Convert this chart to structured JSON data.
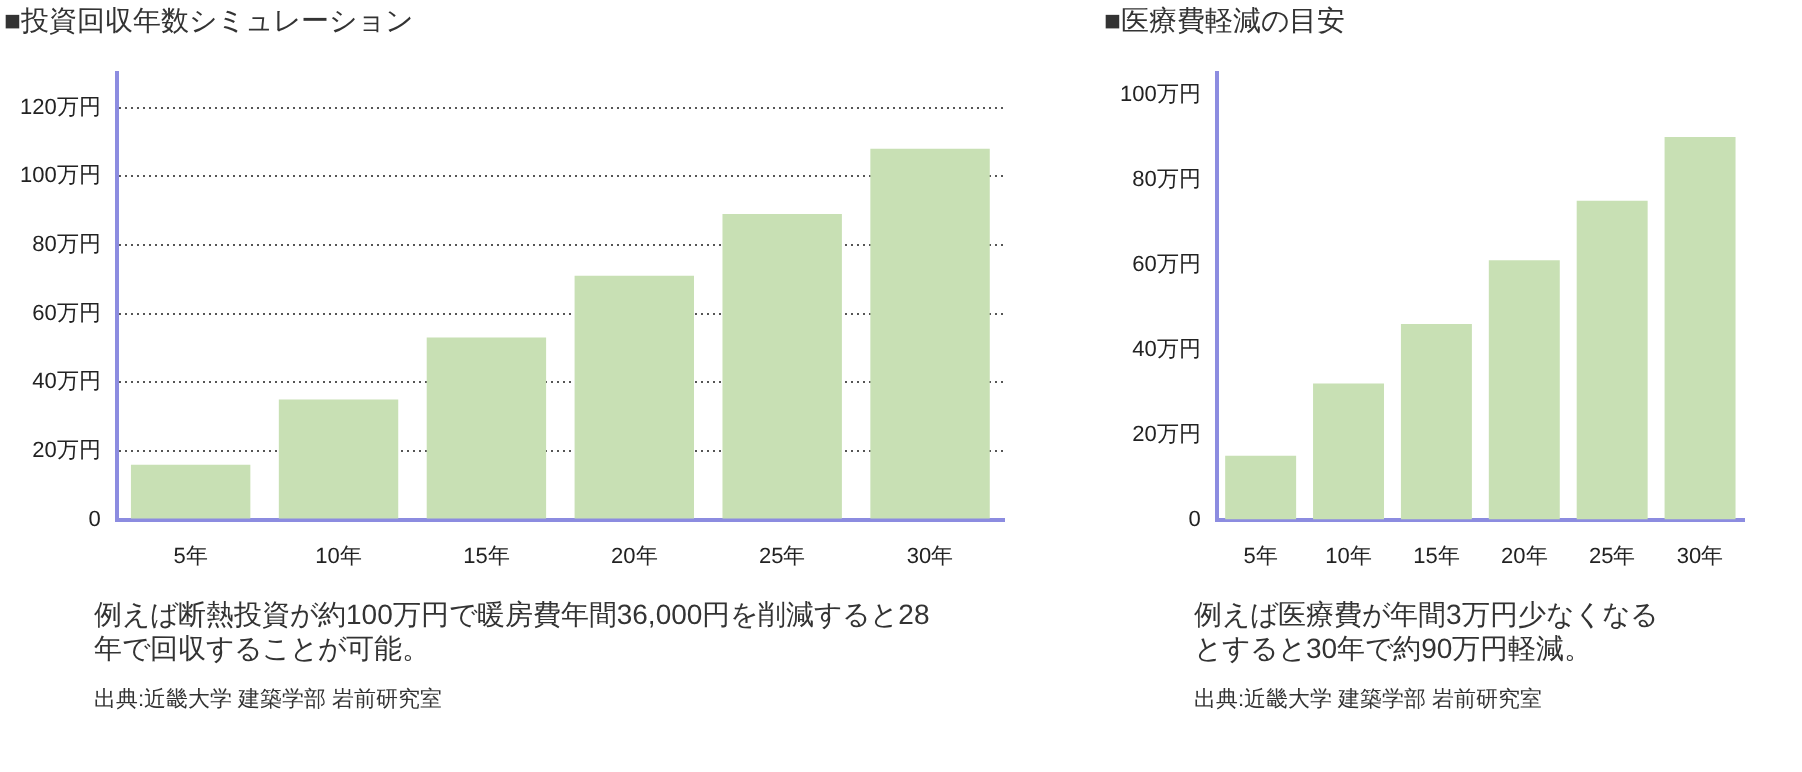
{
  "chart_data": [
    {
      "type": "bar",
      "title": "■投資回収年数シミュレーション",
      "categories": [
        "5年",
        "10年",
        "15年",
        "20年",
        "25年",
        "30年"
      ],
      "values": [
        16,
        35,
        53,
        71,
        89,
        108
      ],
      "color": "#c8e0b4",
      "ylim": [
        0,
        130
      ],
      "yticks": [
        0,
        {
          "value": 20,
          "label": "20万円"
        },
        {
          "value": 40,
          "label": "40万円"
        },
        {
          "value": 60,
          "label": "60万円"
        },
        {
          "value": 80,
          "label": "80万円"
        },
        {
          "value": 100,
          "label": "100万円"
        },
        {
          "value": 120,
          "label": "120万円"
        }
      ],
      "grid": "y",
      "annotations": [
        "例えば断熱投資が約100万円で暖房費年間36,000円を削減すると28年で回収することが可能。",
        "出典:近畿大学 建築学部 岩前研究室"
      ]
    },
    {
      "type": "bar",
      "title": "■医療費軽減の目安",
      "categories": [
        "5年",
        "10年",
        "15年",
        "20年",
        "25年",
        "30年"
      ],
      "values": [
        15,
        32,
        46,
        61,
        75,
        90
      ],
      "color": "#c8e0b4",
      "ylim": [
        0,
        105
      ],
      "yticks": [
        0,
        {
          "value": 20,
          "label": "20万円"
        },
        {
          "value": 40,
          "label": "40万円"
        },
        {
          "value": 60,
          "label": "60万円"
        },
        {
          "value": 80,
          "label": "80万円"
        },
        {
          "value": 100,
          "label": "100万円"
        }
      ],
      "grid": false,
      "annotations": [
        "例えば医療費が年間3万円少なくなるとすると30年で約90万円軽減。",
        "出典:近畿大学 建築学部 岩前研究室"
      ]
    }
  ]
}
